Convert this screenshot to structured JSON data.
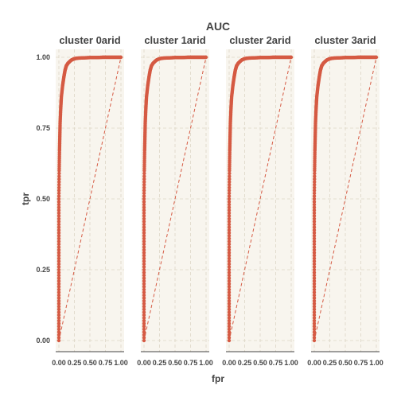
{
  "chart_data": {
    "type": "line",
    "title": "AUC",
    "xlabel": "fpr",
    "ylabel": "tpr",
    "xlim": [
      0,
      1
    ],
    "ylim": [
      0,
      1
    ],
    "x_ticks": [
      "0.00",
      "0.25",
      "0.50",
      "0.75",
      "1.00"
    ],
    "y_ticks": [
      "0.00",
      "0.25",
      "0.50",
      "0.75",
      "1.00"
    ],
    "grid": true,
    "background_color": "#f8f5ee",
    "grid_color": "#ddd6c6",
    "series_color": "#d55a43",
    "reference_line": {
      "from": [
        0,
        0
      ],
      "to": [
        1,
        1
      ],
      "style": "dashed"
    },
    "panels": [
      {
        "label": "cluster 0arid",
        "fpr": [
          0,
          0,
          0,
          0,
          0,
          0,
          0.005,
          0.01,
          0.015,
          0.02,
          0.03,
          0.04,
          0.06,
          0.08,
          0.1,
          0.12,
          0.15,
          0.2,
          0.25,
          0.3,
          0.4,
          0.5,
          0.6,
          0.7,
          0.8,
          0.9,
          1.0
        ],
        "tpr": [
          0,
          0.1,
          0.2,
          0.3,
          0.4,
          0.5,
          0.6,
          0.67,
          0.72,
          0.77,
          0.82,
          0.86,
          0.9,
          0.93,
          0.955,
          0.97,
          0.98,
          0.99,
          0.995,
          0.997,
          0.998,
          0.999,
          0.999,
          1.0,
          1.0,
          1.0,
          1.0
        ]
      },
      {
        "label": "cluster 1arid",
        "fpr": [
          0,
          0,
          0,
          0,
          0,
          0,
          0.005,
          0.01,
          0.015,
          0.02,
          0.03,
          0.04,
          0.06,
          0.08,
          0.1,
          0.12,
          0.15,
          0.2,
          0.25,
          0.3,
          0.4,
          0.5,
          0.6,
          0.7,
          0.8,
          0.9,
          1.0
        ],
        "tpr": [
          0,
          0.1,
          0.2,
          0.3,
          0.4,
          0.5,
          0.6,
          0.67,
          0.72,
          0.77,
          0.82,
          0.86,
          0.9,
          0.93,
          0.955,
          0.97,
          0.98,
          0.99,
          0.995,
          0.997,
          0.998,
          0.999,
          0.999,
          1.0,
          1.0,
          1.0,
          1.0
        ]
      },
      {
        "label": "cluster 2arid",
        "fpr": [
          0,
          0,
          0,
          0,
          0,
          0,
          0.005,
          0.01,
          0.015,
          0.02,
          0.03,
          0.04,
          0.06,
          0.08,
          0.1,
          0.12,
          0.15,
          0.2,
          0.25,
          0.3,
          0.4,
          0.5,
          0.6,
          0.7,
          0.8,
          0.9,
          1.0
        ],
        "tpr": [
          0,
          0.1,
          0.2,
          0.3,
          0.4,
          0.5,
          0.6,
          0.67,
          0.72,
          0.77,
          0.82,
          0.86,
          0.9,
          0.93,
          0.955,
          0.97,
          0.98,
          0.99,
          0.995,
          0.997,
          0.998,
          0.999,
          0.999,
          1.0,
          1.0,
          1.0,
          1.0
        ]
      },
      {
        "label": "cluster 3arid",
        "fpr": [
          0,
          0,
          0,
          0,
          0,
          0,
          0.005,
          0.01,
          0.015,
          0.02,
          0.03,
          0.04,
          0.06,
          0.08,
          0.1,
          0.12,
          0.15,
          0.2,
          0.25,
          0.3,
          0.4,
          0.5,
          0.6,
          0.7,
          0.8,
          0.9,
          1.0
        ],
        "tpr": [
          0,
          0.1,
          0.2,
          0.3,
          0.4,
          0.5,
          0.6,
          0.67,
          0.72,
          0.77,
          0.82,
          0.86,
          0.9,
          0.93,
          0.955,
          0.97,
          0.98,
          0.99,
          0.995,
          0.997,
          0.998,
          0.999,
          0.999,
          1.0,
          1.0,
          1.0,
          1.0
        ]
      }
    ]
  }
}
